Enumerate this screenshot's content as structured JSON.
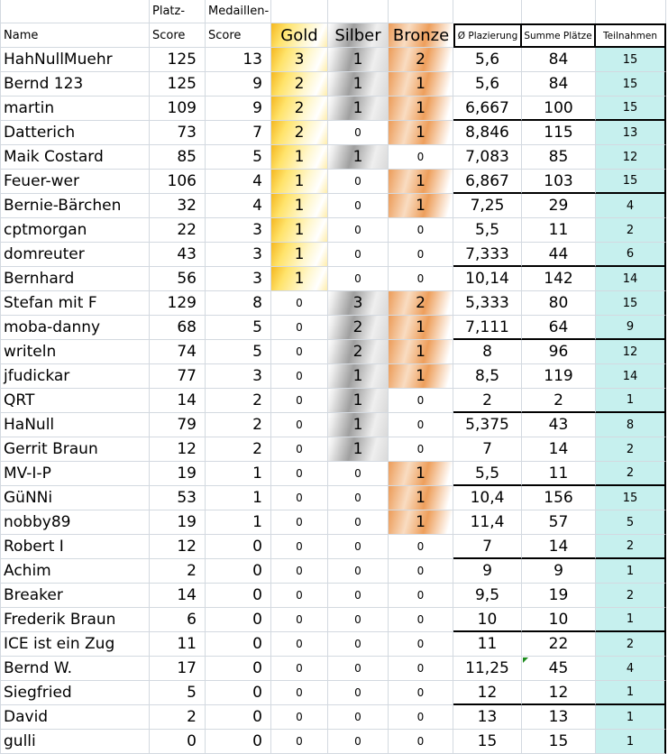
{
  "table": {
    "header": {
      "platz_group": "Platz-",
      "medaillen_group": "Medaillen-",
      "name": "Name",
      "platz_score_label": "Score",
      "medaillen_score_label": "Score",
      "gold": "Gold",
      "silber": "Silber",
      "bronze": "Bronze",
      "avg": "Ø Plazierung",
      "sum": "Summe Plätze",
      "teilnahmen": "Teilnahmen"
    },
    "rows": [
      {
        "name": "HahNullMuehr",
        "platz_score": "125",
        "medaillen_score": "13",
        "gold": "3",
        "silber": "1",
        "bronze": "2",
        "avg": "5,6",
        "sum": "84",
        "teilnahmen": "15"
      },
      {
        "name": "Bernd 123",
        "platz_score": "125",
        "medaillen_score": "9",
        "gold": "2",
        "silber": "1",
        "bronze": "1",
        "avg": "5,6",
        "sum": "84",
        "teilnahmen": "15"
      },
      {
        "name": "martin",
        "platz_score": "109",
        "medaillen_score": "9",
        "gold": "2",
        "silber": "1",
        "bronze": "1",
        "avg": "6,667",
        "sum": "100",
        "teilnahmen": "15"
      },
      {
        "name": "Datterich",
        "platz_score": "73",
        "medaillen_score": "7",
        "gold": "2",
        "silber": "0",
        "bronze": "1",
        "avg": "8,846",
        "sum": "115",
        "teilnahmen": "13"
      },
      {
        "name": "Maik Costard",
        "platz_score": "85",
        "medaillen_score": "5",
        "gold": "1",
        "silber": "1",
        "bronze": "0",
        "avg": "7,083",
        "sum": "85",
        "teilnahmen": "12"
      },
      {
        "name": "Feuer-wer",
        "platz_score": "106",
        "medaillen_score": "4",
        "gold": "1",
        "silber": "0",
        "bronze": "1",
        "avg": "6,867",
        "sum": "103",
        "teilnahmen": "15"
      },
      {
        "name": "Bernie-Bärchen",
        "platz_score": "32",
        "medaillen_score": "4",
        "gold": "1",
        "silber": "0",
        "bronze": "1",
        "avg": "7,25",
        "sum": "29",
        "teilnahmen": "4"
      },
      {
        "name": "cptmorgan",
        "platz_score": "22",
        "medaillen_score": "3",
        "gold": "1",
        "silber": "0",
        "bronze": "0",
        "avg": "5,5",
        "sum": "11",
        "teilnahmen": "2"
      },
      {
        "name": "domreuter",
        "platz_score": "43",
        "medaillen_score": "3",
        "gold": "1",
        "silber": "0",
        "bronze": "0",
        "avg": "7,333",
        "sum": "44",
        "teilnahmen": "6"
      },
      {
        "name": "Bernhard",
        "platz_score": "56",
        "medaillen_score": "3",
        "gold": "1",
        "silber": "0",
        "bronze": "0",
        "avg": "10,14",
        "sum": "142",
        "teilnahmen": "14"
      },
      {
        "name": "Stefan mit F",
        "platz_score": "129",
        "medaillen_score": "8",
        "gold": "0",
        "silber": "3",
        "bronze": "2",
        "avg": "5,333",
        "sum": "80",
        "teilnahmen": "15"
      },
      {
        "name": "moba-danny",
        "platz_score": "68",
        "medaillen_score": "5",
        "gold": "0",
        "silber": "2",
        "bronze": "1",
        "avg": "7,111",
        "sum": "64",
        "teilnahmen": "9"
      },
      {
        "name": "writeln",
        "platz_score": "74",
        "medaillen_score": "5",
        "gold": "0",
        "silber": "2",
        "bronze": "1",
        "avg": "8",
        "sum": "96",
        "teilnahmen": "12"
      },
      {
        "name": "jfudickar",
        "platz_score": "77",
        "medaillen_score": "3",
        "gold": "0",
        "silber": "1",
        "bronze": "1",
        "avg": "8,5",
        "sum": "119",
        "teilnahmen": "14"
      },
      {
        "name": "QRT",
        "platz_score": "14",
        "medaillen_score": "2",
        "gold": "0",
        "silber": "1",
        "bronze": "0",
        "avg": "2",
        "sum": "2",
        "teilnahmen": "1"
      },
      {
        "name": "HaNull",
        "platz_score": "79",
        "medaillen_score": "2",
        "gold": "0",
        "silber": "1",
        "bronze": "0",
        "avg": "5,375",
        "sum": "43",
        "teilnahmen": "8"
      },
      {
        "name": "Gerrit Braun",
        "platz_score": "12",
        "medaillen_score": "2",
        "gold": "0",
        "silber": "1",
        "bronze": "0",
        "avg": "7",
        "sum": "14",
        "teilnahmen": "2"
      },
      {
        "name": "MV-I-P",
        "platz_score": "19",
        "medaillen_score": "1",
        "gold": "0",
        "silber": "0",
        "bronze": "1",
        "avg": "5,5",
        "sum": "11",
        "teilnahmen": "2"
      },
      {
        "name": "GüNNi",
        "platz_score": "53",
        "medaillen_score": "1",
        "gold": "0",
        "silber": "0",
        "bronze": "1",
        "avg": "10,4",
        "sum": "156",
        "teilnahmen": "15"
      },
      {
        "name": "nobby89",
        "platz_score": "19",
        "medaillen_score": "1",
        "gold": "0",
        "silber": "0",
        "bronze": "1",
        "avg": "11,4",
        "sum": "57",
        "teilnahmen": "5"
      },
      {
        "name": "Robert I",
        "platz_score": "12",
        "medaillen_score": "0",
        "gold": "0",
        "silber": "0",
        "bronze": "0",
        "avg": "7",
        "sum": "14",
        "teilnahmen": "2"
      },
      {
        "name": "Achim",
        "platz_score": "2",
        "medaillen_score": "0",
        "gold": "0",
        "silber": "0",
        "bronze": "0",
        "avg": "9",
        "sum": "9",
        "teilnahmen": "1"
      },
      {
        "name": "Breaker",
        "platz_score": "14",
        "medaillen_score": "0",
        "gold": "0",
        "silber": "0",
        "bronze": "0",
        "avg": "9,5",
        "sum": "19",
        "teilnahmen": "2"
      },
      {
        "name": "Frederik Braun",
        "platz_score": "6",
        "medaillen_score": "0",
        "gold": "0",
        "silber": "0",
        "bronze": "0",
        "avg": "10",
        "sum": "10",
        "teilnahmen": "1"
      },
      {
        "name": "ICE ist ein Zug",
        "platz_score": "11",
        "medaillen_score": "0",
        "gold": "0",
        "silber": "0",
        "bronze": "0",
        "avg": "11",
        "sum": "22",
        "teilnahmen": "2"
      },
      {
        "name": "Bernd W.",
        "platz_score": "17",
        "medaillen_score": "0",
        "gold": "0",
        "silber": "0",
        "bronze": "0",
        "avg": "11,25",
        "sum": "45",
        "teilnahmen": "4",
        "marker": "sum"
      },
      {
        "name": "Siegfried",
        "platz_score": "5",
        "medaillen_score": "0",
        "gold": "0",
        "silber": "0",
        "bronze": "0",
        "avg": "12",
        "sum": "12",
        "teilnahmen": "1"
      },
      {
        "name": "David",
        "platz_score": "2",
        "medaillen_score": "0",
        "gold": "0",
        "silber": "0",
        "bronze": "0",
        "avg": "13",
        "sum": "13",
        "teilnahmen": "1"
      },
      {
        "name": "gulli",
        "platz_score": "0",
        "medaillen_score": "0",
        "gold": "0",
        "silber": "0",
        "bronze": "0",
        "avg": "15",
        "sum": "15",
        "teilnahmen": "1"
      }
    ],
    "group_border_every_n_rows": 3
  },
  "colors": {
    "gold": "#f5b820",
    "silver": "#9f9f9f",
    "bronze": "#ec9c58",
    "teilnahmen_bg": "#c6f0ee",
    "gridline": "#d3d9e0",
    "group_border": "#000000",
    "error_indicator_green": "#1e8c1e"
  }
}
